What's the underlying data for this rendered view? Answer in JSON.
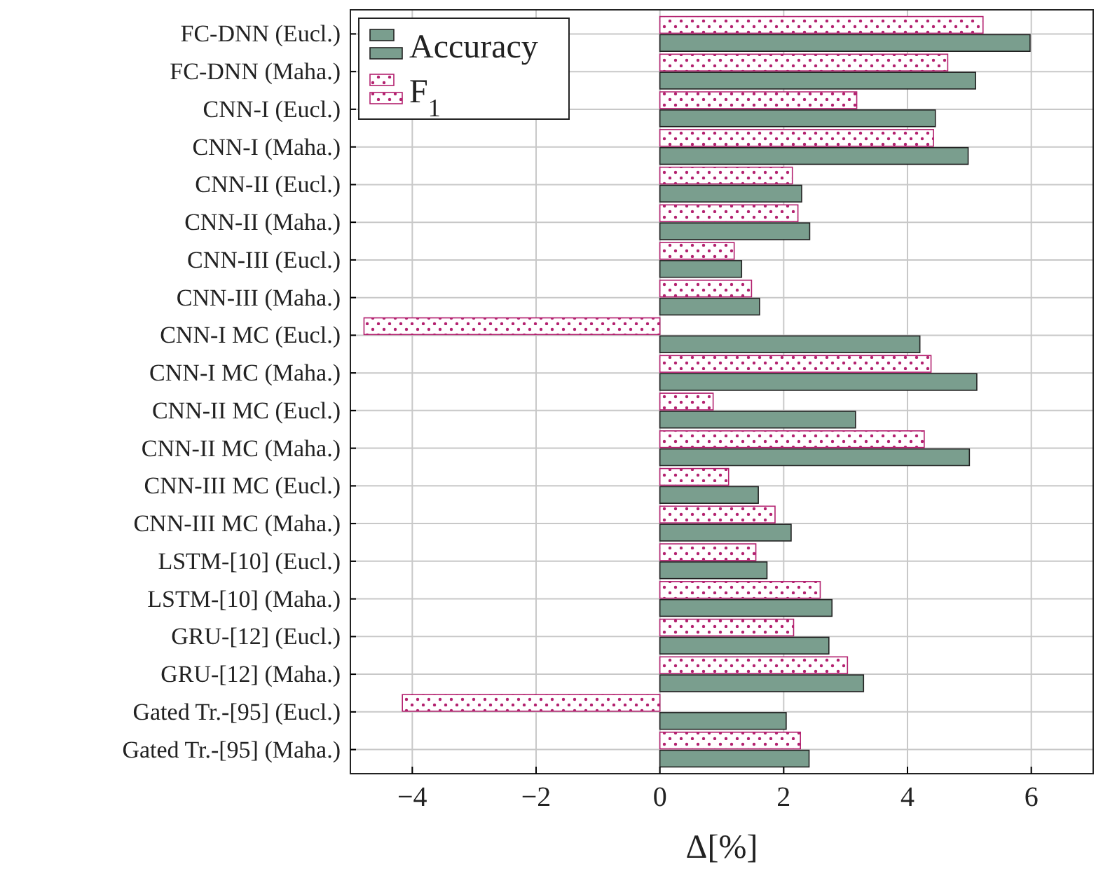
{
  "chart_data": {
    "type": "bar",
    "orientation": "horizontal",
    "xlabel": "Δ[%]",
    "categories": [
      "FC-DNN (Eucl.)",
      "FC-DNN (Maha.)",
      "CNN-I (Eucl.)",
      "CNN-I (Maha.)",
      "CNN-II (Eucl.)",
      "CNN-II (Maha.)",
      "CNN-III (Eucl.)",
      "CNN-III (Maha.)",
      "CNN-I MC (Eucl.)",
      "CNN-I MC (Maha.)",
      "CNN-II MC (Eucl.)",
      "CNN-II MC (Maha.)",
      "CNN-III MC (Eucl.)",
      "CNN-III MC (Maha.)",
      "LSTM-[10] (Eucl.)",
      "LSTM-[10] (Maha.)",
      "GRU-[12] (Eucl.)",
      "GRU-[12] (Maha.)",
      "Gated Tr.-[95] (Eucl.)",
      "Gated Tr.-[95] (Maha.)"
    ],
    "series": [
      {
        "name": "Accuracy",
        "color": "#7a9e8e",
        "values": [
          5.98,
          5.1,
          4.45,
          4.98,
          2.29,
          2.42,
          1.32,
          1.61,
          4.2,
          5.12,
          3.16,
          5.0,
          1.59,
          2.12,
          1.73,
          2.78,
          2.73,
          3.29,
          2.04,
          2.41
        ]
      },
      {
        "name": "F$_{1}$",
        "color": "#b3216f",
        "values": [
          5.22,
          4.65,
          3.18,
          4.42,
          2.14,
          2.23,
          1.2,
          1.48,
          -4.78,
          4.38,
          0.86,
          4.27,
          1.11,
          1.86,
          1.55,
          2.59,
          2.16,
          3.03,
          -4.16,
          2.27
        ]
      }
    ],
    "xlim": [
      -5,
      7
    ],
    "xticks": [
      {
        "value": -4,
        "label": "−4"
      },
      {
        "value": -2,
        "label": "−2"
      },
      0,
      2,
      4,
      6
    ],
    "grid": true,
    "legend": "top left"
  }
}
